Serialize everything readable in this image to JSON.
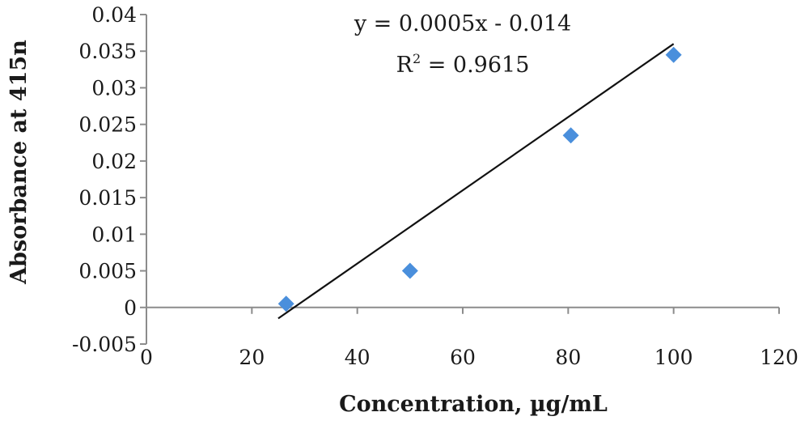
{
  "chart_data": {
    "type": "scatter",
    "xlabel": "Concentration, µg/mL",
    "ylabel": "Absorbance at 415n",
    "xlim": [
      0,
      120
    ],
    "ylim": [
      -0.005,
      0.04
    ],
    "x_ticks": [
      "0",
      "20",
      "40",
      "60",
      "80",
      "100",
      "120"
    ],
    "y_ticks": [
      "-0.005",
      "0",
      "0.005",
      "0.01",
      "0.015",
      "0.02",
      "0.025",
      "0.03",
      "0.035",
      "0.04"
    ],
    "grid": false,
    "legend": "none",
    "series": [
      {
        "marker": "diamond",
        "color": "#4a8fdc",
        "x": [
          26.5,
          50,
          80.5,
          100
        ],
        "y": [
          0.0005,
          0.005,
          0.0235,
          0.0345
        ]
      }
    ],
    "trendline": {
      "type": "linear",
      "slope": 0.0005,
      "intercept": -0.014,
      "x_range": [
        25,
        100
      ],
      "equation": "y = 0.0005x - 0.014",
      "r2_prefix": "R",
      "r2_sup": "2",
      "r2_suffix": " = 0.9615"
    }
  }
}
